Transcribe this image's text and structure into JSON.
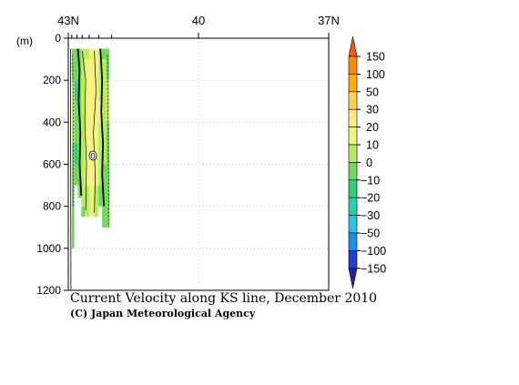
{
  "colors": {
    "background": "#ffffff",
    "frame": "#000000",
    "grid": "#c8c8c8"
  },
  "chart_data": {
    "type": "heatmap",
    "title": "Current Velocity along KS line, December 2010",
    "credit": "(C) Japan Meteorological Agency",
    "x_axis": {
      "position": "top",
      "ticks": [
        {
          "label": "43N",
          "lat": 43
        },
        {
          "label": "40",
          "lat": 40
        },
        {
          "label": "37N",
          "lat": 37
        }
      ],
      "range": [
        43,
        37
      ]
    },
    "y_axis": {
      "unit_label": "(m)",
      "ticks": [
        0,
        200,
        400,
        600,
        800,
        1000,
        1200
      ],
      "range": [
        0,
        1200
      ],
      "inverted": true
    },
    "stations_lat": [
      42.92,
      42.8,
      42.68,
      42.52,
      42.3,
      42.0
    ],
    "contour_label": "0",
    "colorbar": {
      "labels": [
        "150",
        "100",
        "50",
        "30",
        "20",
        "10",
        "0",
        "-10",
        "-20",
        "-30",
        "-50",
        "-100",
        "-150"
      ],
      "colors": [
        "#ff5a00",
        "#ff8a00",
        "#ffb000",
        "#ffd050",
        "#ffee80",
        "#e9f77a",
        "#b9ec5a",
        "#6fda58",
        "#2bd07a",
        "#20d4b0",
        "#28c4e4",
        "#1c8ef0",
        "#1e3fd4",
        "#2020a8"
      ]
    },
    "velocity_section": {
      "depth_bins_m": [
        0,
        100,
        200,
        300,
        400,
        500,
        600,
        700,
        800,
        900,
        1000
      ],
      "columns": [
        {
          "lat_from": 42.92,
          "lat_to": 42.86,
          "max_depth": 1000,
          "v": [
            -5,
            -5,
            0,
            2,
            0,
            -3,
            -5,
            -5,
            -10,
            -5
          ]
        },
        {
          "lat_from": 42.86,
          "lat_to": 42.78,
          "max_depth": 700,
          "v": [
            -10,
            -10,
            -12,
            -10,
            -10,
            -12,
            -10,
            -5
          ]
        },
        {
          "lat_from": 42.78,
          "lat_to": 42.7,
          "max_depth": 760,
          "v": [
            -10,
            -8,
            -5,
            -5,
            -3,
            -5,
            -5,
            -3
          ]
        },
        {
          "lat_from": 42.7,
          "lat_to": 42.62,
          "max_depth": 850,
          "v": [
            0,
            3,
            5,
            5,
            5,
            3,
            2,
            0,
            -3
          ]
        },
        {
          "lat_from": 42.62,
          "lat_to": 42.52,
          "max_depth": 850,
          "v": [
            5,
            10,
            15,
            15,
            15,
            12,
            10,
            8,
            5
          ]
        },
        {
          "lat_from": 42.52,
          "lat_to": 42.4,
          "max_depth": 850,
          "v": [
            10,
            20,
            25,
            25,
            25,
            22,
            20,
            15,
            10
          ]
        },
        {
          "lat_from": 42.4,
          "lat_to": 42.3,
          "max_depth": 850,
          "v": [
            10,
            15,
            20,
            20,
            15,
            12,
            10,
            8,
            5
          ]
        },
        {
          "lat_from": 42.3,
          "lat_to": 42.22,
          "max_depth": 800,
          "v": [
            0,
            5,
            8,
            10,
            5,
            3,
            0,
            -3
          ]
        },
        {
          "lat_from": 42.22,
          "lat_to": 42.12,
          "max_depth": 900,
          "v": [
            -5,
            0,
            3,
            5,
            3,
            0,
            -3,
            -5,
            -8
          ]
        },
        {
          "lat_from": 42.12,
          "lat_to": 42.05,
          "max_depth": 910,
          "v": [
            -10,
            -5,
            0,
            0,
            -3,
            -5,
            -8,
            -10,
            -10
          ]
        }
      ]
    }
  }
}
